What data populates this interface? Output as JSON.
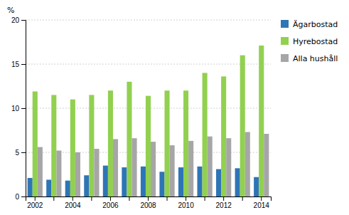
{
  "chart_data": {
    "type": "bar",
    "ylabel": "%",
    "categories": [
      "2002",
      null,
      "2004",
      null,
      "2006",
      null,
      "2008",
      null,
      "2010",
      null,
      "2012",
      null,
      "2014"
    ],
    "series": [
      {
        "name": "Ägarbostad",
        "color": "#2e75b6",
        "values": [
          2.1,
          1.9,
          1.8,
          2.4,
          3.5,
          3.3,
          3.4,
          2.8,
          3.3,
          3.4,
          3.1,
          3.2,
          2.2
        ]
      },
      {
        "name": "Hyrebostad",
        "color": "#92d050",
        "values": [
          11.9,
          11.5,
          11.0,
          11.5,
          12.0,
          13.0,
          11.4,
          12.0,
          12.0,
          14.0,
          13.6,
          16.0,
          17.1
        ]
      },
      {
        "name": "Alla hushåll",
        "color": "#a6a6a6",
        "values": [
          5.6,
          5.2,
          5.0,
          5.4,
          6.5,
          6.6,
          6.2,
          5.8,
          6.3,
          6.8,
          6.6,
          7.3,
          7.1
        ]
      }
    ],
    "ylim": [
      0,
      20
    ],
    "yticks": [
      0,
      5,
      10,
      15,
      20
    ],
    "grid": true,
    "legend": "right"
  }
}
